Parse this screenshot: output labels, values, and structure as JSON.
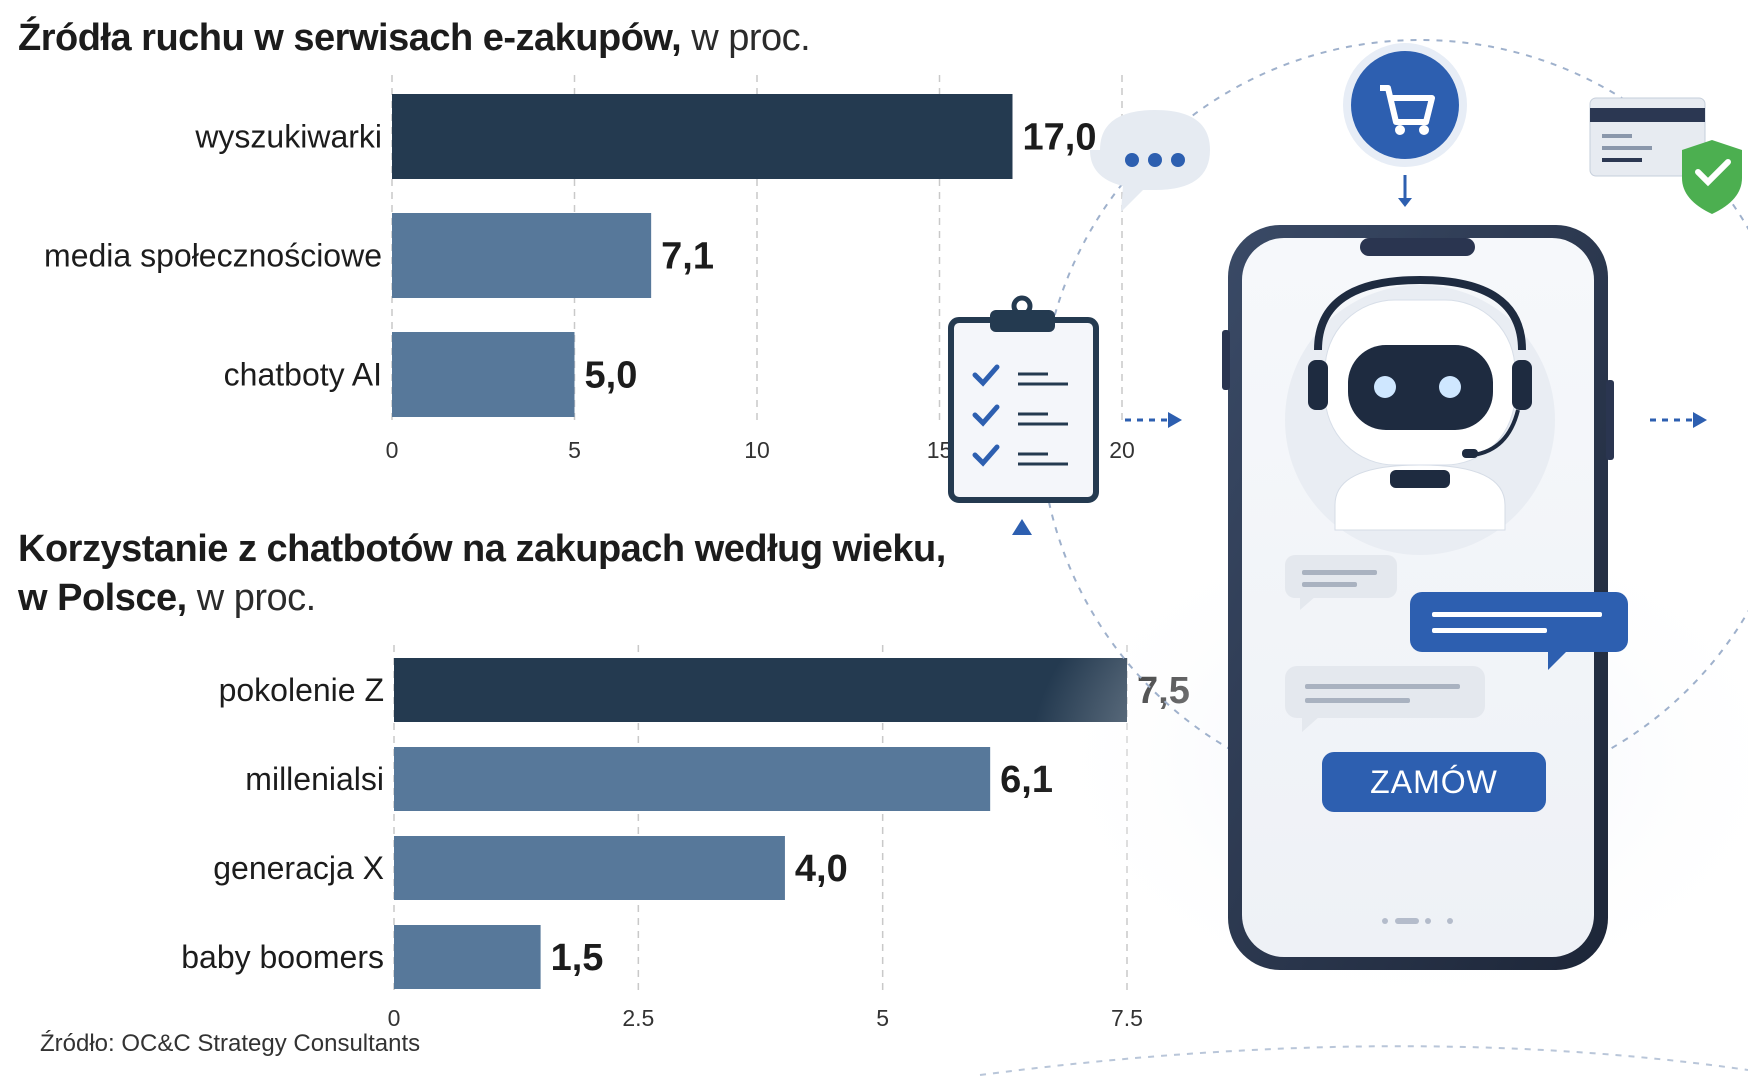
{
  "chart1": {
    "title_bold": "Źródła ruchu w serwisach e-zakupów,",
    "title_unit": " w proc."
  },
  "chart2": {
    "title_bold_line1": "Korzystanie z chatbotów na zakupach według wieku,",
    "title_bold_line2": "w Polsce,",
    "title_unit": " w proc."
  },
  "source": "Źródło: OC&C Strategy Consultants",
  "illustration": {
    "button_label": "ZAMÓW"
  },
  "colors": {
    "highlight_bar": "#243a50",
    "regular_bar": "#57789a",
    "accent_blue": "#2f5da8"
  },
  "chart_data": [
    {
      "type": "bar",
      "orientation": "horizontal",
      "title": "Źródła ruchu w serwisach e-zakupów, w proc.",
      "categories": [
        "wyszukiwarki",
        "media społecznościowe",
        "chatboty AI"
      ],
      "values": [
        17.0,
        7.1,
        5.0
      ],
      "value_labels": [
        "17,0",
        "7,1",
        "5,0"
      ],
      "xlim": [
        0,
        20
      ],
      "ticks": [
        "0",
        "5",
        "10",
        "15",
        "20"
      ],
      "tick_values": [
        0,
        5,
        10,
        15,
        20
      ],
      "grid": true
    },
    {
      "type": "bar",
      "orientation": "horizontal",
      "title": "Korzystanie z chatbotów na zakupach według wieku, w Polsce, w proc.",
      "categories": [
        "pokolenie Z",
        "millenialsi",
        "generacja X",
        "baby boomers"
      ],
      "values": [
        7.5,
        6.1,
        4.0,
        1.5
      ],
      "value_labels": [
        "7,5",
        "6,1",
        "4,0",
        "1,5"
      ],
      "xlim": [
        0,
        7.5
      ],
      "ticks": [
        "0",
        "2.5",
        "5",
        "7.5"
      ],
      "tick_values": [
        0,
        2.5,
        5,
        7.5
      ],
      "grid": true
    }
  ]
}
